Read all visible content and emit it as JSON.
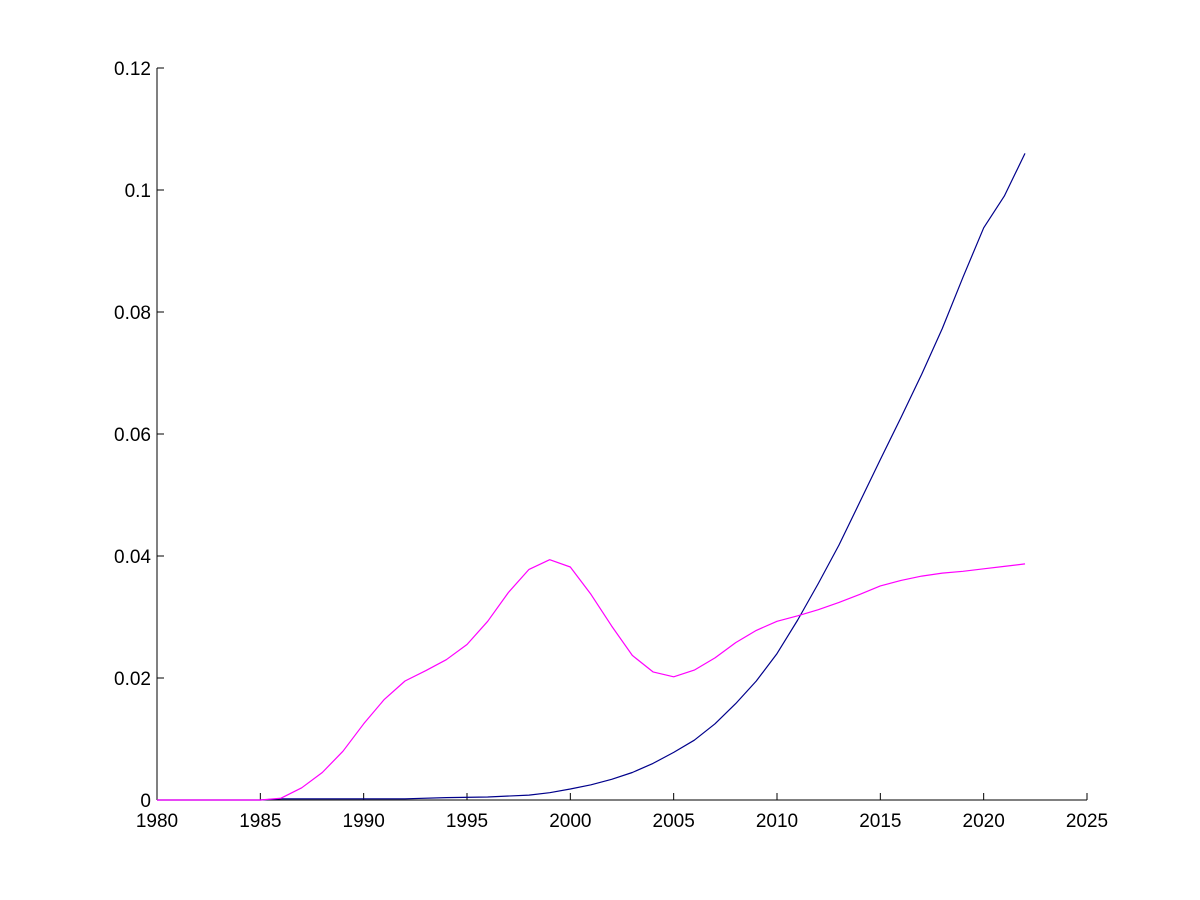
{
  "chart_data": {
    "type": "line",
    "title": "",
    "xlabel": "",
    "ylabel": "",
    "xlim": [
      1980,
      2025
    ],
    "ylim": [
      0,
      0.12
    ],
    "xticks": [
      "1980",
      "1985",
      "1990",
      "1995",
      "2000",
      "2005",
      "2010",
      "2015",
      "2020",
      "2025"
    ],
    "yticks": [
      "0",
      "0.02",
      "0.04",
      "0.06",
      "0.08",
      "0.1",
      "0.12"
    ],
    "grid": false,
    "legend": null,
    "series": [
      {
        "color": "#00008b",
        "x": [
          1980,
          1985,
          1986,
          1988,
          1990,
          1992,
          1994,
          1996,
          1998,
          1999,
          2000,
          2001,
          2002,
          2003,
          2004,
          2005,
          2006,
          2007,
          2008,
          2009,
          2010,
          2011,
          2012,
          2013,
          2014,
          2015,
          2016,
          2017,
          2018,
          2019,
          2020,
          2021,
          2022
        ],
        "y": [
          0,
          0,
          0.0002,
          0.0002,
          0.0002,
          0.0002,
          0.0004,
          0.0005,
          0.0008,
          0.0012,
          0.0018,
          0.0025,
          0.0034,
          0.0045,
          0.006,
          0.0078,
          0.0098,
          0.0125,
          0.0158,
          0.0195,
          0.024,
          0.0295,
          0.0355,
          0.0418,
          0.0488,
          0.0558,
          0.0627,
          0.0698,
          0.0773,
          0.0857,
          0.0938,
          0.099,
          0.106
        ]
      },
      {
        "color": "#ff00ff",
        "x": [
          1980,
          1985,
          1986,
          1987,
          1988,
          1989,
          1990,
          1991,
          1992,
          1993,
          1994,
          1995,
          1996,
          1997,
          1998,
          1999,
          2000,
          2001,
          2002,
          2003,
          2004,
          2005,
          2006,
          2007,
          2008,
          2009,
          2010,
          2011,
          2012,
          2013,
          2014,
          2015,
          2016,
          2017,
          2018,
          2019,
          2020,
          2021,
          2022
        ],
        "y": [
          0,
          0,
          0.0003,
          0.002,
          0.0045,
          0.008,
          0.0125,
          0.0165,
          0.0195,
          0.0212,
          0.023,
          0.0255,
          0.0293,
          0.034,
          0.0378,
          0.0394,
          0.0382,
          0.0337,
          0.0285,
          0.0237,
          0.021,
          0.0202,
          0.0213,
          0.0233,
          0.0258,
          0.0278,
          0.0293,
          0.0302,
          0.0312,
          0.0324,
          0.0337,
          0.0351,
          0.036,
          0.0367,
          0.0372,
          0.0375,
          0.0379,
          0.0383,
          0.0387
        ]
      }
    ]
  }
}
